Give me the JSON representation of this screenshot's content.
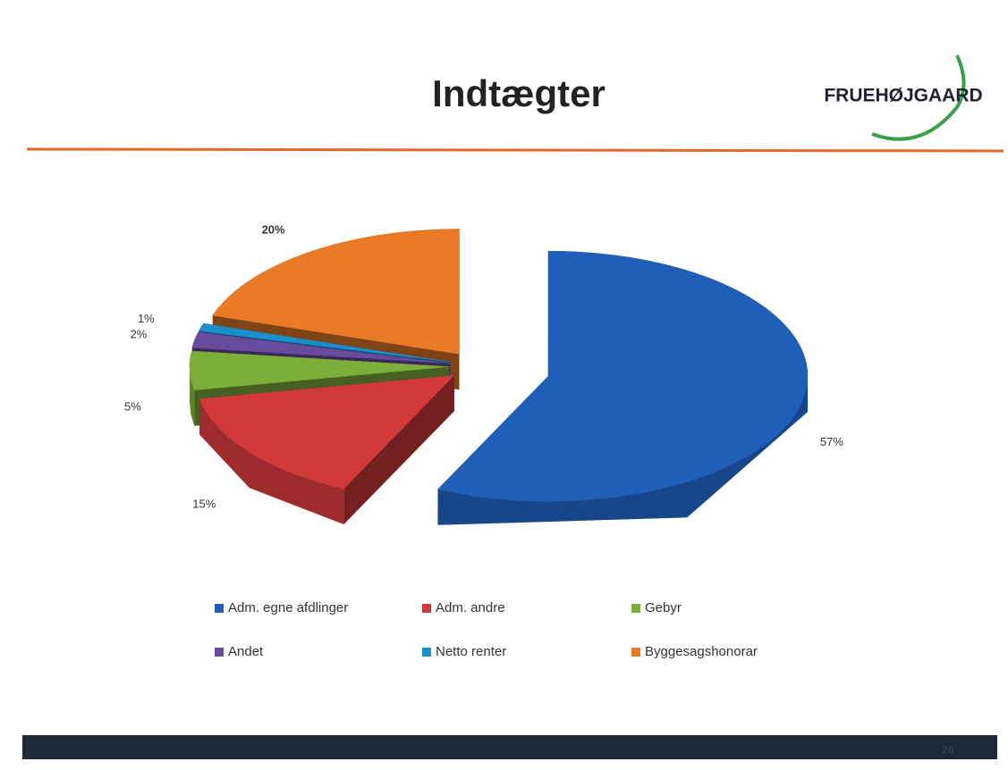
{
  "header": {
    "title": "Indtægter",
    "logo": "FRUEHØJGAARD",
    "page_number": "26"
  },
  "chart_data": {
    "type": "pie",
    "categories": [
      "Adm. egne afdlinger",
      "Adm. andre",
      "Gebyr",
      "Andet",
      "Netto renter",
      "Byggesagshonorar"
    ],
    "values": [
      57,
      15,
      5,
      2,
      1,
      20
    ],
    "value_labels": [
      "57%",
      "15%",
      "5%",
      "2%",
      "1%",
      "20%"
    ],
    "colors": [
      "#1f5fb8",
      "#d23a3a",
      "#7eae3a",
      "#6a4a9c",
      "#1a8fcb",
      "#e87a28"
    ],
    "legend": "bottom"
  }
}
